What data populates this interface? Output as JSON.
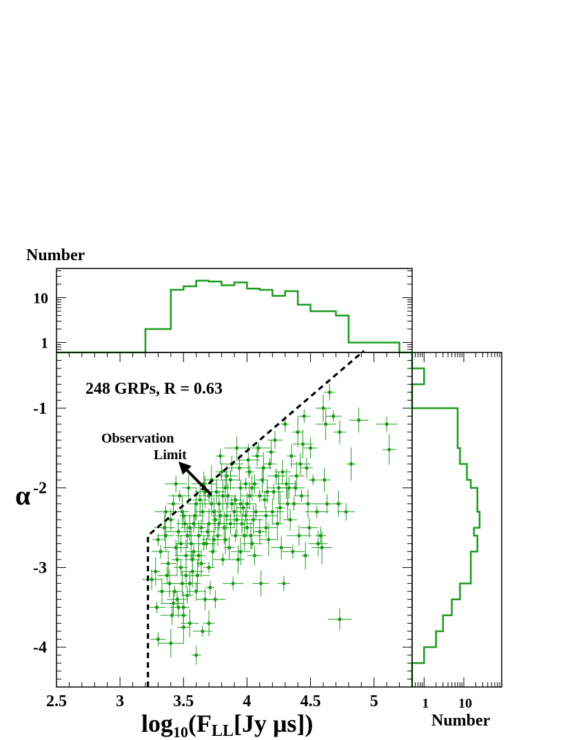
{
  "chart_data": [
    {
      "type": "scatter",
      "xlabel_main": "log",
      "xlabel_sub": "10",
      "xlabel_paren": "(F",
      "xlabel_sub2": "LL",
      "xlabel_rest": "[Jy μs])",
      "ylabel": "α",
      "xlim": [
        2.5,
        5.3
      ],
      "ylim": [
        -4.5,
        -0.3
      ],
      "x_ticks": [
        2.5,
        3,
        3.5,
        4,
        4.5,
        5
      ],
      "x_tick_labels": [
        "2.5",
        "3",
        "3.5",
        "4",
        "4.5",
        "5"
      ],
      "y_ticks": [
        -1,
        -2,
        -3,
        -4
      ],
      "y_tick_labels": [
        "-1",
        "-2",
        "-3",
        "-4"
      ],
      "annotation": "248 GRPs, R = 0.63",
      "limit_label_line1": "Observation",
      "limit_label_line2": "Limit",
      "limit_line": {
        "vertical_x": 3.22,
        "vertical_y": [
          -4.5,
          -2.6
        ],
        "diagonal_from": [
          3.22,
          -2.6
        ],
        "diagonal_to": [
          4.92,
          -0.28
        ]
      },
      "arrow": {
        "from": [
          3.72,
          -2.09
        ],
        "to": [
          3.46,
          -1.67
        ]
      },
      "color": "#1a9a1a",
      "points": [
        [
          3.5,
          -2.35
        ],
        [
          3.55,
          -2.5
        ],
        [
          3.48,
          -2.7
        ],
        [
          3.6,
          -2.2
        ],
        [
          3.52,
          -3.1
        ],
        [
          3.45,
          -3.4
        ],
        [
          3.5,
          -3.5
        ],
        [
          3.55,
          -3.2
        ],
        [
          3.58,
          -2.8
        ],
        [
          3.62,
          -2.6
        ],
        [
          3.65,
          -2.3
        ],
        [
          3.7,
          -2.1
        ],
        [
          3.72,
          -1.9
        ],
        [
          3.75,
          -2.4
        ],
        [
          3.68,
          -2.7
        ],
        [
          3.64,
          -2.95
        ],
        [
          3.6,
          -3.3
        ],
        [
          3.7,
          -3.0
        ],
        [
          3.78,
          -2.2
        ],
        [
          3.8,
          -1.8
        ],
        [
          3.82,
          -2.5
        ],
        [
          3.85,
          -2.1
        ],
        [
          3.88,
          -1.7
        ],
        [
          3.9,
          -2.3
        ],
        [
          3.92,
          -1.5
        ],
        [
          3.95,
          -2.0
        ],
        [
          3.98,
          -2.6
        ],
        [
          4.0,
          -2.2
        ],
        [
          4.02,
          -1.8
        ],
        [
          4.05,
          -2.4
        ],
        [
          4.08,
          -1.6
        ],
        [
          4.1,
          -2.1
        ],
        [
          4.12,
          -1.9
        ],
        [
          4.15,
          -2.5
        ],
        [
          4.18,
          -1.7
        ],
        [
          4.2,
          -2.3
        ],
        [
          4.22,
          -1.4
        ],
        [
          4.25,
          -2.0
        ],
        [
          4.28,
          -1.8
        ],
        [
          4.3,
          -1.2
        ],
        [
          4.32,
          -2.2
        ],
        [
          4.35,
          -1.6
        ],
        [
          4.38,
          -2.0
        ],
        [
          4.4,
          -1.3
        ],
        [
          4.42,
          -1.7
        ],
        [
          4.45,
          -1.1
        ],
        [
          4.48,
          -2.2
        ],
        [
          4.5,
          -1.5
        ],
        [
          4.55,
          -2.3
        ],
        [
          4.6,
          -1.0
        ],
        [
          4.63,
          -2.2
        ],
        [
          4.68,
          -1.1
        ],
        [
          4.72,
          -2.2
        ],
        [
          4.78,
          -2.3
        ],
        [
          4.82,
          -1.7
        ],
        [
          4.88,
          -1.15
        ],
        [
          4.65,
          -0.8
        ],
        [
          4.62,
          -1.2
        ],
        [
          4.73,
          -1.3
        ],
        [
          5.1,
          -1.2
        ],
        [
          5.12,
          -1.52
        ],
        [
          4.73,
          -3.65
        ],
        [
          3.3,
          -3.9
        ],
        [
          3.4,
          -3.95
        ],
        [
          3.46,
          -3.5
        ],
        [
          3.5,
          -3.6
        ],
        [
          3.55,
          -3.7
        ],
        [
          3.6,
          -4.1
        ],
        [
          3.65,
          -3.8
        ],
        [
          3.7,
          -3.7
        ],
        [
          3.75,
          -3.4
        ],
        [
          3.5,
          -3.75
        ],
        [
          3.42,
          -3.45
        ],
        [
          3.48,
          -3.0
        ],
        [
          3.52,
          -2.85
        ],
        [
          3.38,
          -2.95
        ],
        [
          3.44,
          -2.75
        ],
        [
          3.36,
          -2.6
        ],
        [
          3.4,
          -2.4
        ],
        [
          3.32,
          -2.8
        ],
        [
          3.28,
          -3.05
        ],
        [
          3.25,
          -3.15
        ],
        [
          3.3,
          -2.65
        ],
        [
          3.35,
          -2.5
        ],
        [
          3.42,
          -2.2
        ],
        [
          3.47,
          -2.1
        ],
        [
          3.54,
          -2.0
        ],
        [
          3.58,
          -2.45
        ],
        [
          3.63,
          -2.15
        ],
        [
          3.66,
          -1.95
        ],
        [
          3.69,
          -2.55
        ],
        [
          3.73,
          -2.8
        ],
        [
          3.76,
          -2.05
        ],
        [
          3.79,
          -1.6
        ],
        [
          3.83,
          -2.0
        ],
        [
          3.86,
          -2.75
        ],
        [
          3.89,
          -3.2
        ],
        [
          3.93,
          -2.9
        ],
        [
          3.96,
          -2.45
        ],
        [
          3.99,
          -1.95
        ],
        [
          4.03,
          -2.6
        ],
        [
          4.06,
          -2.85
        ],
        [
          4.09,
          -1.5
        ],
        [
          4.11,
          -3.2
        ],
        [
          4.14,
          -2.15
        ],
        [
          4.17,
          -2.65
        ],
        [
          4.19,
          -1.55
        ],
        [
          4.21,
          -2.05
        ],
        [
          4.24,
          -2.45
        ],
        [
          4.27,
          -2.75
        ],
        [
          4.29,
          -3.2
        ],
        [
          4.31,
          -1.95
        ],
        [
          4.34,
          -2.4
        ],
        [
          4.36,
          -2.8
        ],
        [
          4.39,
          -1.85
        ],
        [
          4.41,
          -2.6
        ],
        [
          4.43,
          -2.1
        ],
        [
          4.46,
          -2.85
        ],
        [
          4.49,
          -2.5
        ],
        [
          4.52,
          -1.9
        ],
        [
          4.56,
          -2.7
        ],
        [
          4.58,
          -2.6
        ],
        [
          4.59,
          -2.75
        ],
        [
          4.61,
          -1.9
        ],
        [
          3.44,
          -1.95
        ],
        [
          3.49,
          -2.3
        ],
        [
          3.53,
          -2.6
        ],
        [
          3.57,
          -2.9
        ],
        [
          3.61,
          -3.1
        ],
        [
          3.67,
          -3.4
        ],
        [
          3.71,
          -3.25
        ],
        [
          3.74,
          -2.3
        ],
        [
          3.77,
          -2.6
        ],
        [
          3.81,
          -2.9
        ],
        [
          3.84,
          -2.35
        ],
        [
          3.87,
          -1.9
        ],
        [
          3.91,
          -2.15
        ],
        [
          3.94,
          -1.75
        ],
        [
          3.97,
          -2.25
        ],
        [
          4.01,
          -1.65
        ],
        [
          4.04,
          -2.0
        ],
        [
          4.07,
          -2.3
        ],
        [
          4.13,
          -1.75
        ],
        [
          4.16,
          -2.05
        ],
        [
          4.23,
          -1.85
        ],
        [
          4.26,
          -2.25
        ],
        [
          4.33,
          -2.0
        ],
        [
          4.37,
          -2.2
        ],
        [
          4.44,
          -1.45
        ],
        [
          4.47,
          -1.75
        ],
        [
          3.36,
          -2.3
        ],
        [
          3.39,
          -3.2
        ],
        [
          3.41,
          -3.6
        ],
        [
          3.43,
          -3.3
        ],
        [
          3.46,
          -2.55
        ],
        [
          3.51,
          -2.45
        ],
        [
          3.56,
          -2.7
        ],
        [
          3.59,
          -2.35
        ],
        [
          3.64,
          -2.5
        ],
        [
          3.67,
          -2.05
        ],
        [
          3.72,
          -2.2
        ],
        [
          3.78,
          -2.45
        ],
        [
          3.81,
          -2.1
        ],
        [
          3.84,
          -1.85
        ],
        [
          3.88,
          -2.2
        ],
        [
          3.92,
          -2.4
        ],
        [
          3.95,
          -2.2
        ],
        [
          3.99,
          -2.35
        ],
        [
          4.02,
          -2.1
        ],
        [
          4.06,
          -1.95
        ],
        [
          3.29,
          -3.5
        ],
        [
          3.33,
          -3.3
        ],
        [
          3.37,
          -3.1
        ],
        [
          3.45,
          -2.9
        ],
        [
          3.49,
          -3.2
        ],
        [
          3.53,
          -3.35
        ],
        [
          3.57,
          -3.05
        ],
        [
          3.62,
          -2.85
        ],
        [
          3.66,
          -2.7
        ],
        [
          3.7,
          -2.45
        ],
        [
          3.74,
          -2.65
        ],
        [
          3.79,
          -2.35
        ],
        [
          3.83,
          -2.65
        ],
        [
          3.87,
          -2.45
        ],
        [
          3.91,
          -2.6
        ],
        [
          3.95,
          -2.8
        ],
        [
          4.0,
          -2.5
        ],
        [
          4.04,
          -2.7
        ],
        [
          4.1,
          -2.55
        ],
        [
          4.15,
          -2.35
        ]
      ]
    },
    {
      "type": "histogram",
      "orientation": "vertical",
      "ylabel": "Number",
      "yscale": "log",
      "y_ticks": [
        1,
        10
      ],
      "y_tick_labels": [
        "1",
        "10"
      ],
      "ylim": [
        0.6,
        45
      ],
      "bin_edges": [
        2.5,
        3.2,
        3.4,
        3.5,
        3.6,
        3.7,
        3.8,
        3.9,
        4.0,
        4.1,
        4.2,
        4.3,
        4.4,
        4.5,
        4.7,
        4.8,
        5.2,
        5.3
      ],
      "counts": [
        0,
        2,
        15,
        18,
        24,
        23,
        19,
        22,
        16,
        15,
        11,
        14,
        7,
        5,
        4,
        1,
        0.6
      ]
    },
    {
      "type": "histogram",
      "orientation": "horizontal",
      "xlabel": "Number",
      "xscale": "log",
      "x_ticks": [
        1,
        10
      ],
      "x_tick_labels": [
        "1",
        "10"
      ],
      "xlim": [
        0.5,
        90
      ],
      "bin_edges": [
        -0.3,
        -0.5,
        -0.7,
        -1.0,
        -1.5,
        -1.7,
        -1.9,
        -2.0,
        -2.3,
        -2.5,
        -2.6,
        -2.8,
        -3.2,
        -3.4,
        -3.6,
        -3.8,
        -4.0,
        -4.2,
        -4.5
      ],
      "counts": [
        0,
        1,
        0,
        7,
        8,
        12,
        15,
        22,
        25,
        18,
        22,
        15,
        8,
        5,
        3,
        2,
        1,
        0
      ]
    }
  ]
}
